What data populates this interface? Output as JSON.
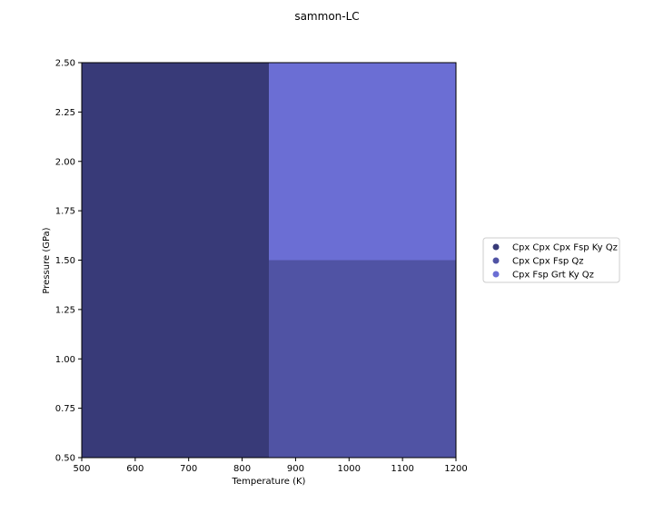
{
  "chart_data": {
    "type": "heatmap",
    "title": "sammon-LC",
    "xlabel": "Temperature (K)",
    "ylabel": "Pressure (GPa)",
    "xlim": [
      500,
      1200
    ],
    "ylim": [
      0.5,
      2.5
    ],
    "xticks": [
      500,
      600,
      700,
      800,
      900,
      1000,
      1100,
      1200
    ],
    "xtick_labels": [
      "500",
      "600",
      "700",
      "800",
      "900",
      "1000",
      "1100",
      "1200"
    ],
    "yticks": [
      0.5,
      0.75,
      1.0,
      1.25,
      1.5,
      1.75,
      2.0,
      2.25,
      2.5
    ],
    "ytick_labels": [
      "0.50",
      "0.75",
      "1.00",
      "1.25",
      "1.50",
      "1.75",
      "2.00",
      "2.25",
      "2.50"
    ],
    "grid": false,
    "legend_placement": "right",
    "regions": [
      {
        "label": "Cpx Cpx Cpx Fsp Ky Qz",
        "x_range": [
          500,
          850
        ],
        "y_range": [
          0.5,
          2.5
        ]
      },
      {
        "label": "Cpx Cpx Fsp Qz",
        "x_range": [
          850,
          1200
        ],
        "y_range": [
          0.5,
          1.5
        ]
      },
      {
        "label": "Cpx Fsp Grt Ky Qz",
        "x_range": [
          850,
          1200
        ],
        "y_range": [
          1.5,
          2.5
        ]
      }
    ],
    "legend": [
      {
        "label": "Cpx Cpx Cpx Fsp Ky Qz",
        "color": "#383a78"
      },
      {
        "label": "Cpx Cpx Fsp Qz",
        "color": "#5053a4"
      },
      {
        "label": "Cpx Fsp Grt Ky Qz",
        "color": "#6b6ed4"
      }
    ]
  }
}
